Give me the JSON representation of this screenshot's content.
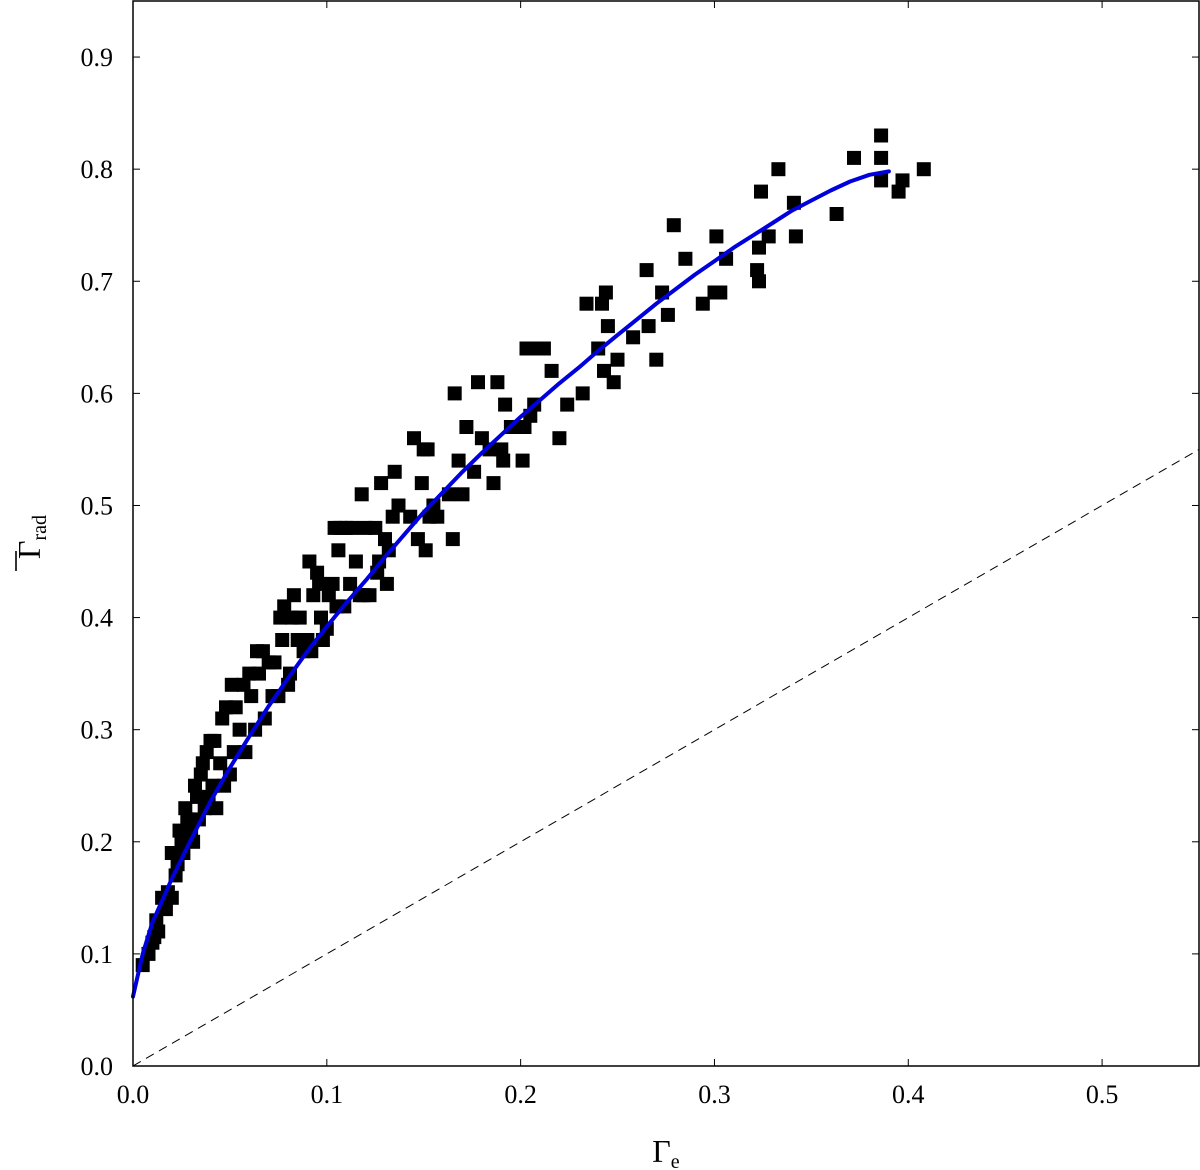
{
  "chart_data": {
    "type": "scatter",
    "title": "",
    "xlabel": "Γ",
    "xlabel_sub": "e",
    "ylabel": "Γ",
    "ylabel_sub": "rad",
    "ylabel_overline": true,
    "xlim": [
      0,
      0.55
    ],
    "ylim": [
      0,
      0.95
    ],
    "xticks": [
      0.0,
      0.1,
      0.2,
      0.3,
      0.4,
      0.5
    ],
    "xtick_labels": [
      "0.0",
      "0.1",
      "0.2",
      "0.3",
      "0.4",
      "0.5"
    ],
    "yticks": [
      0.0,
      0.1,
      0.2,
      0.3,
      0.4,
      0.5,
      0.6,
      0.7,
      0.8,
      0.9
    ],
    "ytick_labels": [
      "0.0",
      "0.1",
      "0.2",
      "0.3",
      "0.4",
      "0.5",
      "0.6",
      "0.7",
      "0.8",
      "0.9"
    ],
    "grid": false,
    "legend": "none",
    "colors": {
      "points": "#000000",
      "fit": "#0000dd",
      "reference": "#000000"
    },
    "series": [
      {
        "kind": "scatter",
        "marker": "square",
        "points": [
          [
            0.005,
            0.09
          ],
          [
            0.008,
            0.1
          ],
          [
            0.01,
            0.11
          ],
          [
            0.011,
            0.115
          ],
          [
            0.012,
            0.13
          ],
          [
            0.013,
            0.12
          ],
          [
            0.015,
            0.15
          ],
          [
            0.017,
            0.14
          ],
          [
            0.018,
            0.155
          ],
          [
            0.02,
            0.15
          ],
          [
            0.02,
            0.19
          ],
          [
            0.022,
            0.17
          ],
          [
            0.023,
            0.18
          ],
          [
            0.024,
            0.21
          ],
          [
            0.025,
            0.2
          ],
          [
            0.026,
            0.19
          ],
          [
            0.027,
            0.23
          ],
          [
            0.028,
            0.22
          ],
          [
            0.03,
            0.21
          ],
          [
            0.031,
            0.2
          ],
          [
            0.032,
            0.25
          ],
          [
            0.033,
            0.24
          ],
          [
            0.034,
            0.22
          ],
          [
            0.035,
            0.26
          ],
          [
            0.036,
            0.27
          ],
          [
            0.037,
            0.23
          ],
          [
            0.038,
            0.28
          ],
          [
            0.039,
            0.24
          ],
          [
            0.04,
            0.29
          ],
          [
            0.041,
            0.25
          ],
          [
            0.042,
            0.29
          ],
          [
            0.043,
            0.23
          ],
          [
            0.045,
            0.27
          ],
          [
            0.046,
            0.31
          ],
          [
            0.047,
            0.25
          ],
          [
            0.048,
            0.32
          ],
          [
            0.05,
            0.26
          ],
          [
            0.051,
            0.34
          ],
          [
            0.052,
            0.28
          ],
          [
            0.053,
            0.32
          ],
          [
            0.055,
            0.3
          ],
          [
            0.057,
            0.34
          ],
          [
            0.058,
            0.28
          ],
          [
            0.06,
            0.35
          ],
          [
            0.061,
            0.33
          ],
          [
            0.063,
            0.3
          ],
          [
            0.064,
            0.37
          ],
          [
            0.065,
            0.35
          ],
          [
            0.067,
            0.37
          ],
          [
            0.068,
            0.31
          ],
          [
            0.07,
            0.36
          ],
          [
            0.072,
            0.33
          ],
          [
            0.073,
            0.36
          ],
          [
            0.075,
            0.33
          ],
          [
            0.076,
            0.4
          ],
          [
            0.077,
            0.38
          ],
          [
            0.078,
            0.41
          ],
          [
            0.08,
            0.34
          ],
          [
            0.081,
            0.35
          ],
          [
            0.082,
            0.4
          ],
          [
            0.083,
            0.42
          ],
          [
            0.085,
            0.38
          ],
          [
            0.086,
            0.4
          ],
          [
            0.088,
            0.37
          ],
          [
            0.09,
            0.38
          ],
          [
            0.091,
            0.45
          ],
          [
            0.092,
            0.37
          ],
          [
            0.093,
            0.42
          ],
          [
            0.095,
            0.44
          ],
          [
            0.096,
            0.43
          ],
          [
            0.097,
            0.4
          ],
          [
            0.098,
            0.38
          ],
          [
            0.1,
            0.39
          ],
          [
            0.101,
            0.42
          ],
          [
            0.103,
            0.43
          ],
          [
            0.104,
            0.48
          ],
          [
            0.105,
            0.41
          ],
          [
            0.106,
            0.46
          ],
          [
            0.107,
            0.48
          ],
          [
            0.109,
            0.41
          ],
          [
            0.11,
            0.48
          ],
          [
            0.112,
            0.43
          ],
          [
            0.113,
            0.48
          ],
          [
            0.115,
            0.45
          ],
          [
            0.117,
            0.42
          ],
          [
            0.118,
            0.51
          ],
          [
            0.119,
            0.42
          ],
          [
            0.12,
            0.48
          ],
          [
            0.122,
            0.42
          ],
          [
            0.125,
            0.48
          ],
          [
            0.126,
            0.44
          ],
          [
            0.127,
            0.45
          ],
          [
            0.128,
            0.52
          ],
          [
            0.13,
            0.47
          ],
          [
            0.131,
            0.43
          ],
          [
            0.132,
            0.46
          ],
          [
            0.134,
            0.49
          ],
          [
            0.135,
            0.53
          ],
          [
            0.137,
            0.5
          ],
          [
            0.143,
            0.49
          ],
          [
            0.145,
            0.56
          ],
          [
            0.147,
            0.47
          ],
          [
            0.149,
            0.52
          ],
          [
            0.15,
            0.55
          ],
          [
            0.151,
            0.46
          ],
          [
            0.152,
            0.55
          ],
          [
            0.153,
            0.49
          ],
          [
            0.155,
            0.5
          ],
          [
            0.157,
            0.49
          ],
          [
            0.163,
            0.51
          ],
          [
            0.165,
            0.47
          ],
          [
            0.166,
            0.6
          ],
          [
            0.168,
            0.54
          ],
          [
            0.17,
            0.51
          ],
          [
            0.172,
            0.57
          ],
          [
            0.176,
            0.53
          ],
          [
            0.178,
            0.61
          ],
          [
            0.18,
            0.56
          ],
          [
            0.184,
            0.55
          ],
          [
            0.186,
            0.52
          ],
          [
            0.188,
            0.61
          ],
          [
            0.19,
            0.55
          ],
          [
            0.191,
            0.54
          ],
          [
            0.192,
            0.59
          ],
          [
            0.195,
            0.57
          ],
          [
            0.201,
            0.54
          ],
          [
            0.202,
            0.57
          ],
          [
            0.203,
            0.64
          ],
          [
            0.205,
            0.58
          ],
          [
            0.207,
            0.59
          ],
          [
            0.21,
            0.64
          ],
          [
            0.212,
            0.64
          ],
          [
            0.216,
            0.62
          ],
          [
            0.22,
            0.56
          ],
          [
            0.224,
            0.59
          ],
          [
            0.232,
            0.6
          ],
          [
            0.234,
            0.68
          ],
          [
            0.24,
            0.64
          ],
          [
            0.242,
            0.68
          ],
          [
            0.243,
            0.62
          ],
          [
            0.244,
            0.69
          ],
          [
            0.245,
            0.66
          ],
          [
            0.248,
            0.61
          ],
          [
            0.25,
            0.63
          ],
          [
            0.258,
            0.65
          ],
          [
            0.265,
            0.71
          ],
          [
            0.266,
            0.66
          ],
          [
            0.27,
            0.63
          ],
          [
            0.273,
            0.69
          ],
          [
            0.276,
            0.67
          ],
          [
            0.279,
            0.75
          ],
          [
            0.285,
            0.72
          ],
          [
            0.294,
            0.68
          ],
          [
            0.3,
            0.69
          ],
          [
            0.301,
            0.74
          ],
          [
            0.303,
            0.69
          ],
          [
            0.306,
            0.72
          ],
          [
            0.322,
            0.71
          ],
          [
            0.323,
            0.73
          ],
          [
            0.323,
            0.7
          ],
          [
            0.324,
            0.78
          ],
          [
            0.328,
            0.74
          ],
          [
            0.333,
            0.8
          ],
          [
            0.341,
            0.77
          ],
          [
            0.342,
            0.74
          ],
          [
            0.363,
            0.76
          ],
          [
            0.372,
            0.81
          ],
          [
            0.386,
            0.83
          ],
          [
            0.386,
            0.81
          ],
          [
            0.386,
            0.79
          ],
          [
            0.395,
            0.78
          ],
          [
            0.397,
            0.79
          ],
          [
            0.408,
            0.8
          ]
        ]
      },
      {
        "kind": "fit-curve",
        "points": [
          [
            0.0,
            0.062
          ],
          [
            0.005,
            0.1
          ],
          [
            0.01,
            0.128
          ],
          [
            0.02,
            0.167
          ],
          [
            0.03,
            0.202
          ],
          [
            0.04,
            0.236
          ],
          [
            0.05,
            0.266
          ],
          [
            0.06,
            0.294
          ],
          [
            0.07,
            0.321
          ],
          [
            0.08,
            0.346
          ],
          [
            0.09,
            0.37
          ],
          [
            0.1,
            0.392
          ],
          [
            0.11,
            0.413
          ],
          [
            0.12,
            0.433
          ],
          [
            0.13,
            0.454
          ],
          [
            0.14,
            0.474
          ],
          [
            0.15,
            0.494
          ],
          [
            0.16,
            0.512
          ],
          [
            0.17,
            0.53
          ],
          [
            0.18,
            0.547
          ],
          [
            0.19,
            0.563
          ],
          [
            0.2,
            0.579
          ],
          [
            0.21,
            0.594
          ],
          [
            0.22,
            0.609
          ],
          [
            0.23,
            0.623
          ],
          [
            0.24,
            0.638
          ],
          [
            0.25,
            0.652
          ],
          [
            0.26,
            0.666
          ],
          [
            0.27,
            0.68
          ],
          [
            0.28,
            0.693
          ],
          [
            0.29,
            0.706
          ],
          [
            0.3,
            0.718
          ],
          [
            0.31,
            0.73
          ],
          [
            0.32,
            0.741
          ],
          [
            0.33,
            0.752
          ],
          [
            0.34,
            0.763
          ],
          [
            0.35,
            0.772
          ],
          [
            0.36,
            0.781
          ],
          [
            0.37,
            0.789
          ],
          [
            0.38,
            0.795
          ],
          [
            0.39,
            0.798
          ]
        ]
      },
      {
        "kind": "reference-line",
        "points": [
          [
            0.0,
            0.0
          ],
          [
            0.55,
            0.55
          ]
        ]
      }
    ]
  }
}
